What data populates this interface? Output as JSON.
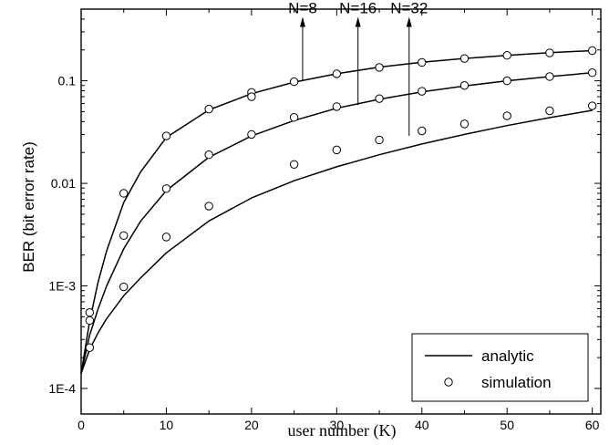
{
  "chart_data": {
    "type": "line",
    "xlabel": "user number (K)",
    "ylabel": "BER (bit error rate)",
    "xlim": [
      0,
      61
    ],
    "ylim": [
      0.0001,
      0.5
    ],
    "yscale": "log",
    "x_ticks": [
      0,
      10,
      20,
      30,
      40,
      50,
      60
    ],
    "x_tick_labels": [
      "0",
      "10",
      "20",
      "30",
      "40",
      "50",
      "60"
    ],
    "y_ticks": [
      0.0001,
      0.001,
      0.01,
      0.1
    ],
    "y_tick_labels": [
      "1E-4",
      "1E-3",
      "0.01",
      "0.1"
    ],
    "grid": false,
    "legend_position": "bottom-right",
    "legend": [
      {
        "label": "analytic",
        "marker": "line"
      },
      {
        "label": "simulation",
        "marker": "open-circle"
      }
    ],
    "series": [
      {
        "name": "analytic",
        "group": "N=8",
        "style": "line",
        "x": [
          0,
          1,
          2,
          3,
          5,
          7,
          10,
          15,
          20,
          25,
          30,
          35,
          40,
          45,
          50,
          55,
          60
        ],
        "y": [
          0.00014,
          0.00045,
          0.0011,
          0.0022,
          0.0065,
          0.013,
          0.028,
          0.052,
          0.075,
          0.097,
          0.117,
          0.136,
          0.152,
          0.165,
          0.177,
          0.188,
          0.197
        ]
      },
      {
        "name": "simulation",
        "group": "N=8",
        "style": "marker",
        "x": [
          1,
          5,
          10,
          15,
          20,
          20,
          25,
          30,
          35,
          40,
          45,
          50,
          55,
          60
        ],
        "y": [
          0.00055,
          0.008,
          0.029,
          0.053,
          0.077,
          0.07,
          0.098,
          0.117,
          0.135,
          0.151,
          0.165,
          0.177,
          0.187,
          0.197
        ]
      },
      {
        "name": "analytic",
        "group": "N=16",
        "style": "line",
        "x": [
          0,
          1,
          2,
          3,
          5,
          7,
          10,
          15,
          20,
          25,
          30,
          35,
          40,
          45,
          50,
          55,
          60
        ],
        "y": [
          0.00014,
          0.00033,
          0.0006,
          0.001,
          0.0023,
          0.0043,
          0.0085,
          0.018,
          0.029,
          0.041,
          0.054,
          0.066,
          0.078,
          0.089,
          0.1,
          0.11,
          0.12
        ]
      },
      {
        "name": "simulation",
        "group": "N=16",
        "style": "marker",
        "x": [
          1,
          5,
          10,
          15,
          20,
          25,
          30,
          35,
          40,
          45,
          50,
          55,
          60
        ],
        "y": [
          0.00046,
          0.0031,
          0.0089,
          0.019,
          0.03,
          0.044,
          0.056,
          0.067,
          0.079,
          0.09,
          0.1,
          0.11,
          0.12
        ]
      },
      {
        "name": "analytic",
        "group": "N=32",
        "style": "line",
        "x": [
          0,
          1,
          2,
          3,
          5,
          7,
          10,
          15,
          20,
          25,
          30,
          35,
          40,
          45,
          50,
          55,
          60
        ],
        "y": [
          0.00014,
          0.00024,
          0.00035,
          0.00048,
          0.0008,
          0.0012,
          0.0021,
          0.0043,
          0.0072,
          0.0106,
          0.0145,
          0.019,
          0.0242,
          0.03,
          0.0366,
          0.0437,
          0.0515
        ]
      },
      {
        "name": "simulation",
        "group": "N=32",
        "style": "marker",
        "x": [
          1,
          5,
          10,
          15,
          25,
          30,
          35,
          40,
          45,
          50,
          55,
          60
        ],
        "y": [
          0.00025,
          0.00098,
          0.003,
          0.006,
          0.0153,
          0.0212,
          0.0265,
          0.0325,
          0.038,
          0.0455,
          0.051,
          0.057
        ]
      }
    ],
    "annotations": [
      {
        "text": "N=8",
        "arrow_x": 26,
        "arrow_from_y": 0.099,
        "arrow_to_y": 0.42
      },
      {
        "text": "N=16",
        "arrow_x": 32.5,
        "arrow_from_y": 0.058,
        "arrow_to_y": 0.42
      },
      {
        "text": "N=32",
        "arrow_x": 38.5,
        "arrow_from_y": 0.029,
        "arrow_to_y": 0.42
      }
    ]
  }
}
